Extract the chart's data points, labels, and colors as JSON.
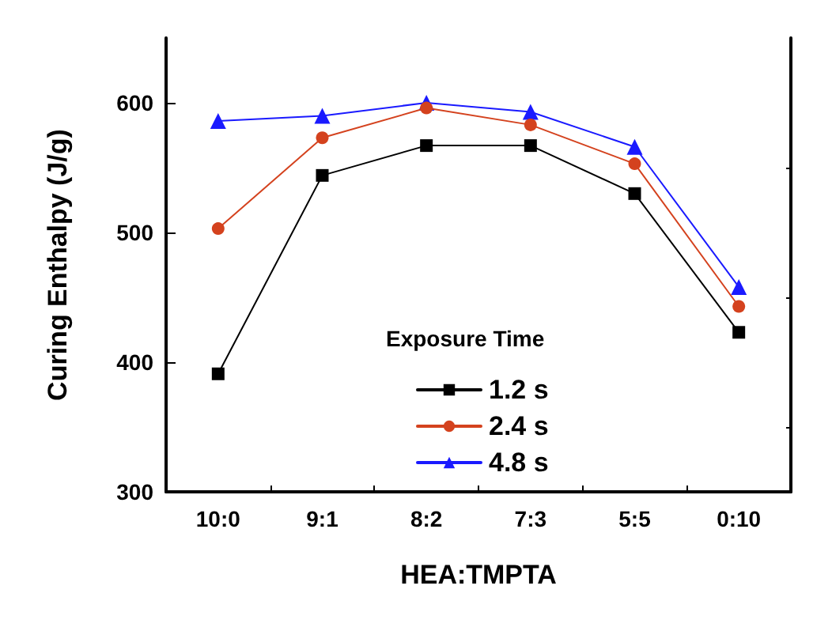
{
  "chart_data": {
    "type": "line",
    "xlabel": "HEA:TMPTA",
    "ylabel": "Curing Enthalpy (J/g)",
    "legend_title": "Exposure Time",
    "categories": [
      "10:0",
      "9:1",
      "8:2",
      "7:3",
      "5:5",
      "0:10"
    ],
    "series": [
      {
        "name": "1.2 s",
        "color": "#000000",
        "marker": "square",
        "values": [
          391,
          544,
          567,
          567,
          530,
          423
        ]
      },
      {
        "name": "2.4 s",
        "color": "#d4421e",
        "marker": "circle",
        "values": [
          503,
          573,
          596,
          583,
          553,
          443
        ]
      },
      {
        "name": "4.8 s",
        "color": "#1a1aff",
        "marker": "triangle",
        "values": [
          586,
          590,
          600,
          593,
          566,
          458
        ]
      }
    ],
    "ylim": [
      300,
      650
    ],
    "yticks": [
      300,
      400,
      500,
      600
    ],
    "grid": false,
    "legend": "bottom",
    "line_style": "solid"
  }
}
